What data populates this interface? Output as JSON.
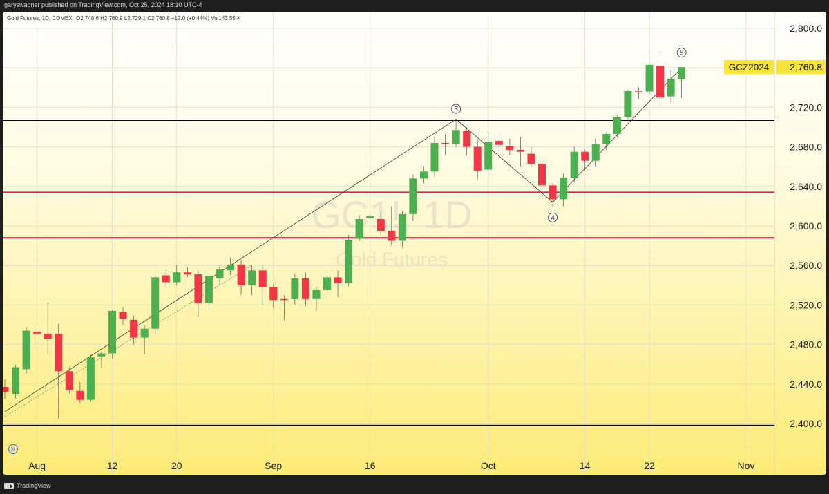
{
  "header": {
    "publisher_line": "garyswagner published on TradingView.com, Oct 25, 2024 18:10 UTC-4"
  },
  "chart_info": {
    "symbol_desc": "Gold Futures, 1D, COMEX",
    "ohlc": "O2,748.6 H2,760.9 L2,729.1 C2,760.8 +12.0 (+0.44%) Vol143.55 K",
    "watermark_symbol": "GC1!, 1D",
    "watermark_name": "Gold Futures"
  },
  "footer": {
    "brand": "TradingView"
  },
  "colors": {
    "up": "#4caf50",
    "down": "#f23645",
    "gradient_top": "#ffffff",
    "gradient_bottom": "#fdeb77",
    "support_black": "#000000",
    "support_red": "#e0234e",
    "price_label_bg": "#f7e43a"
  },
  "chart_data": {
    "type": "candlestick",
    "ylim": [
      2385,
      2830
    ],
    "y_ticks": [
      "2,400.0",
      "2,440.0",
      "2,480.0",
      "2,520.0",
      "2,560.0",
      "2,600.0",
      "2,640.0",
      "2,680.0",
      "2,720.0",
      "2,760.0",
      "2,800.0"
    ],
    "y_tick_values": [
      2400,
      2440,
      2480,
      2520,
      2560,
      2600,
      2640,
      2680,
      2720,
      2760,
      2800
    ],
    "x_labels": [
      {
        "label": "Aug",
        "date": "2024-08-01"
      },
      {
        "label": "12",
        "date": "2024-08-12"
      },
      {
        "label": "20",
        "date": "2024-08-20"
      },
      {
        "label": "Sep",
        "date": "2024-09-03"
      },
      {
        "label": "16",
        "date": "2024-09-16"
      },
      {
        "label": "Oct",
        "date": "2024-10-01"
      },
      {
        "label": "14",
        "date": "2024-10-14"
      },
      {
        "label": "22",
        "date": "2024-10-22"
      },
      {
        "label": "Nov",
        "date": "2024-11-01"
      }
    ],
    "candles": [
      {
        "date": "2024-07-29",
        "o": 2437,
        "h": 2445,
        "l": 2425,
        "c": 2432
      },
      {
        "date": "2024-07-30",
        "o": 2430,
        "h": 2460,
        "l": 2425,
        "c": 2457
      },
      {
        "date": "2024-07-31",
        "o": 2455,
        "h": 2497,
        "l": 2450,
        "c": 2494
      },
      {
        "date": "2024-08-01",
        "o": 2493,
        "h": 2502,
        "l": 2480,
        "c": 2491
      },
      {
        "date": "2024-08-02",
        "o": 2491,
        "h": 2522,
        "l": 2470,
        "c": 2486
      },
      {
        "date": "2024-08-05",
        "o": 2491,
        "h": 2501,
        "l": 2405,
        "c": 2453
      },
      {
        "date": "2024-08-06",
        "o": 2453,
        "h": 2457,
        "l": 2430,
        "c": 2434
      },
      {
        "date": "2024-08-07",
        "o": 2433,
        "h": 2442,
        "l": 2420,
        "c": 2424
      },
      {
        "date": "2024-08-08",
        "o": 2424,
        "h": 2470,
        "l": 2422,
        "c": 2467
      },
      {
        "date": "2024-08-09",
        "o": 2468,
        "h": 2472,
        "l": 2456,
        "c": 2471
      },
      {
        "date": "2024-08-12",
        "o": 2471,
        "h": 2515,
        "l": 2466,
        "c": 2514
      },
      {
        "date": "2024-08-13",
        "o": 2513,
        "h": 2518,
        "l": 2500,
        "c": 2506
      },
      {
        "date": "2024-08-14",
        "o": 2505,
        "h": 2509,
        "l": 2480,
        "c": 2487
      },
      {
        "date": "2024-08-15",
        "o": 2487,
        "h": 2500,
        "l": 2470,
        "c": 2496
      },
      {
        "date": "2024-08-16",
        "o": 2496,
        "h": 2550,
        "l": 2490,
        "c": 2548
      },
      {
        "date": "2024-08-19",
        "o": 2550,
        "h": 2556,
        "l": 2538,
        "c": 2543
      },
      {
        "date": "2024-08-20",
        "o": 2543,
        "h": 2560,
        "l": 2540,
        "c": 2553
      },
      {
        "date": "2024-08-21",
        "o": 2553,
        "h": 2558,
        "l": 2548,
        "c": 2551
      },
      {
        "date": "2024-08-22",
        "o": 2551,
        "h": 2555,
        "l": 2508,
        "c": 2522
      },
      {
        "date": "2024-08-23",
        "o": 2522,
        "h": 2552,
        "l": 2519,
        "c": 2549
      },
      {
        "date": "2024-08-26",
        "o": 2547,
        "h": 2560,
        "l": 2540,
        "c": 2556
      },
      {
        "date": "2024-08-27",
        "o": 2555,
        "h": 2568,
        "l": 2550,
        "c": 2561
      },
      {
        "date": "2024-08-28",
        "o": 2561,
        "h": 2565,
        "l": 2530,
        "c": 2540
      },
      {
        "date": "2024-08-29",
        "o": 2540,
        "h": 2560,
        "l": 2530,
        "c": 2555
      },
      {
        "date": "2024-08-30",
        "o": 2555,
        "h": 2560,
        "l": 2520,
        "c": 2538
      },
      {
        "date": "2024-09-03",
        "o": 2538,
        "h": 2541,
        "l": 2517,
        "c": 2525
      },
      {
        "date": "2024-09-04",
        "o": 2526,
        "h": 2530,
        "l": 2505,
        "c": 2525
      },
      {
        "date": "2024-09-05",
        "o": 2526,
        "h": 2552,
        "l": 2520,
        "c": 2547
      },
      {
        "date": "2024-09-06",
        "o": 2547,
        "h": 2553,
        "l": 2519,
        "c": 2526
      },
      {
        "date": "2024-09-09",
        "o": 2526,
        "h": 2538,
        "l": 2514,
        "c": 2535
      },
      {
        "date": "2024-09-10",
        "o": 2535,
        "h": 2550,
        "l": 2532,
        "c": 2548
      },
      {
        "date": "2024-09-11",
        "o": 2548,
        "h": 2555,
        "l": 2528,
        "c": 2542
      },
      {
        "date": "2024-09-12",
        "o": 2542,
        "h": 2591,
        "l": 2539,
        "c": 2586
      },
      {
        "date": "2024-09-13",
        "o": 2587,
        "h": 2611,
        "l": 2585,
        "c": 2607
      },
      {
        "date": "2024-09-16",
        "o": 2608,
        "h": 2612,
        "l": 2605,
        "c": 2610
      },
      {
        "date": "2024-09-17",
        "o": 2607,
        "h": 2614,
        "l": 2590,
        "c": 2595
      },
      {
        "date": "2024-09-18",
        "o": 2595,
        "h": 2620,
        "l": 2580,
        "c": 2585
      },
      {
        "date": "2024-09-19",
        "o": 2585,
        "h": 2615,
        "l": 2578,
        "c": 2612
      },
      {
        "date": "2024-09-20",
        "o": 2612,
        "h": 2652,
        "l": 2605,
        "c": 2648
      },
      {
        "date": "2024-09-23",
        "o": 2648,
        "h": 2660,
        "l": 2643,
        "c": 2655
      },
      {
        "date": "2024-09-24",
        "o": 2655,
        "h": 2690,
        "l": 2650,
        "c": 2684
      },
      {
        "date": "2024-09-25",
        "o": 2684,
        "h": 2693,
        "l": 2672,
        "c": 2683
      },
      {
        "date": "2024-09-26",
        "o": 2683,
        "h": 2708,
        "l": 2680,
        "c": 2697
      },
      {
        "date": "2024-09-27",
        "o": 2696,
        "h": 2700,
        "l": 2671,
        "c": 2680
      },
      {
        "date": "2024-09-30",
        "o": 2680,
        "h": 2688,
        "l": 2647,
        "c": 2656
      },
      {
        "date": "2024-10-01",
        "o": 2657,
        "h": 2695,
        "l": 2650,
        "c": 2685
      },
      {
        "date": "2024-10-02",
        "o": 2686,
        "h": 2688,
        "l": 2670,
        "c": 2682
      },
      {
        "date": "2024-10-03",
        "o": 2681,
        "h": 2688,
        "l": 2672,
        "c": 2677
      },
      {
        "date": "2024-10-04",
        "o": 2677,
        "h": 2690,
        "l": 2660,
        "c": 2675
      },
      {
        "date": "2024-10-07",
        "o": 2673,
        "h": 2680,
        "l": 2660,
        "c": 2663
      },
      {
        "date": "2024-10-08",
        "o": 2663,
        "h": 2667,
        "l": 2627,
        "c": 2641
      },
      {
        "date": "2024-10-09",
        "o": 2641,
        "h": 2643,
        "l": 2619,
        "c": 2627
      },
      {
        "date": "2024-10-10",
        "o": 2627,
        "h": 2653,
        "l": 2620,
        "c": 2649
      },
      {
        "date": "2024-10-11",
        "o": 2649,
        "h": 2680,
        "l": 2644,
        "c": 2675
      },
      {
        "date": "2024-10-14",
        "o": 2675,
        "h": 2677,
        "l": 2656,
        "c": 2666
      },
      {
        "date": "2024-10-15",
        "o": 2666,
        "h": 2688,
        "l": 2660,
        "c": 2683
      },
      {
        "date": "2024-10-16",
        "o": 2683,
        "h": 2695,
        "l": 2677,
        "c": 2693
      },
      {
        "date": "2024-10-17",
        "o": 2693,
        "h": 2712,
        "l": 2690,
        "c": 2710
      },
      {
        "date": "2024-10-18",
        "o": 2710,
        "h": 2738,
        "l": 2707,
        "c": 2737
      },
      {
        "date": "2024-10-21",
        "o": 2737,
        "h": 2740,
        "l": 2728,
        "c": 2736
      },
      {
        "date": "2024-10-22",
        "o": 2736,
        "h": 2764,
        "l": 2733,
        "c": 2763
      },
      {
        "date": "2024-10-23",
        "o": 2762,
        "h": 2774,
        "l": 2722,
        "c": 2730
      },
      {
        "date": "2024-10-24",
        "o": 2731,
        "h": 2758,
        "l": 2725,
        "c": 2749
      },
      {
        "date": "2024-10-25",
        "o": 2748.6,
        "h": 2760.9,
        "l": 2729.1,
        "c": 2760.8
      }
    ],
    "horizontal_lines": [
      {
        "y": 2707,
        "color": "#000000"
      },
      {
        "y": 2634,
        "color": "#e0234e"
      },
      {
        "y": 2588,
        "color": "#e0234e"
      },
      {
        "y": 2398,
        "color": "#000000"
      }
    ],
    "wave_labels": [
      {
        "label": "3",
        "date": "2024-09-26",
        "y": 2708,
        "pos": "above"
      },
      {
        "label": "4",
        "date": "2024-10-09",
        "y": 2619,
        "pos": "below"
      },
      {
        "label": "5",
        "date": "2024-10-25",
        "y": 2765,
        "pos": "above"
      }
    ],
    "wave_lines": [
      {
        "points": [
          {
            "date": "2024-07-29",
            "y": 2412
          },
          {
            "date": "2024-09-26",
            "y": 2708
          },
          {
            "date": "2024-10-09",
            "y": 2624
          },
          {
            "date": "2024-10-25",
            "y": 2760
          }
        ]
      }
    ],
    "channel_line": {
      "from": {
        "date": "2024-07-29",
        "y": 2407
      },
      "to": {
        "date": "2024-08-29",
        "y": 2560
      }
    },
    "last_price": {
      "symbol": "GCZ2024",
      "value": "2,760.8",
      "y": 2760.8
    }
  }
}
